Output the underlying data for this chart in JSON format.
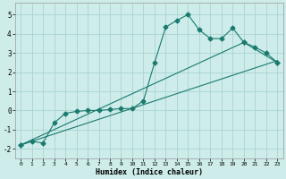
{
  "xlabel": "Humidex (Indice chaleur)",
  "background_color": "#cdecea",
  "grid_color": "#a8d5d2",
  "line_color": "#1a7a6e",
  "xlim": [
    -0.5,
    23.5
  ],
  "ylim": [
    -2.5,
    5.6
  ],
  "x_ticks": [
    0,
    1,
    2,
    3,
    4,
    5,
    6,
    7,
    8,
    9,
    10,
    11,
    12,
    13,
    14,
    15,
    16,
    17,
    18,
    19,
    20,
    21,
    22,
    23
  ],
  "y_ticks": [
    -2,
    -1,
    0,
    1,
    2,
    3,
    4,
    5
  ],
  "curve_x": [
    0,
    1,
    2,
    3,
    4,
    5,
    6,
    7,
    8,
    9,
    10,
    11,
    12,
    13,
    14,
    15,
    16,
    17,
    18,
    19,
    20,
    21,
    22,
    23
  ],
  "curve_y": [
    -1.8,
    -1.6,
    -1.7,
    -0.65,
    -0.15,
    -0.05,
    0.0,
    0.0,
    0.05,
    0.1,
    0.1,
    0.5,
    2.5,
    4.35,
    4.7,
    5.0,
    4.2,
    3.75,
    3.75,
    4.3,
    3.55,
    3.3,
    3.0,
    2.5
  ],
  "line2_x": [
    0,
    23
  ],
  "line2_y": [
    -1.8,
    2.6
  ],
  "line3_x": [
    0,
    20,
    23
  ],
  "line3_y": [
    -1.8,
    3.55,
    2.5
  ]
}
